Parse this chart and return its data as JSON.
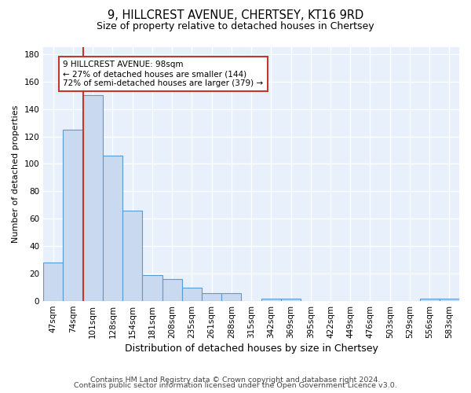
{
  "title1": "9, HILLCREST AVENUE, CHERTSEY, KT16 9RD",
  "title2": "Size of property relative to detached houses in Chertsey",
  "categories": [
    "47sqm",
    "74sqm",
    "101sqm",
    "128sqm",
    "154sqm",
    "181sqm",
    "208sqm",
    "235sqm",
    "261sqm",
    "288sqm",
    "315sqm",
    "342sqm",
    "369sqm",
    "395sqm",
    "422sqm",
    "449sqm",
    "476sqm",
    "503sqm",
    "529sqm",
    "556sqm",
    "583sqm"
  ],
  "values": [
    28,
    125,
    150,
    106,
    66,
    19,
    16,
    10,
    6,
    6,
    0,
    2,
    2,
    0,
    0,
    0,
    0,
    0,
    0,
    2,
    2
  ],
  "bar_color": "#c9d9f0",
  "bar_edge_color": "#5b9bd5",
  "bar_edge_width": 0.8,
  "vline_x_index": 2,
  "vline_color": "#c0392b",
  "annotation_line1": "9 HILLCREST AVENUE: 98sqm",
  "annotation_line2": "← 27% of detached houses are smaller (144)",
  "annotation_line3": "72% of semi-detached houses are larger (379) →",
  "annotation_box_color": "#ffffff",
  "annotation_box_edgecolor": "#c0392b",
  "xlabel": "Distribution of detached houses by size in Chertsey",
  "ylabel": "Number of detached properties",
  "ylim": [
    0,
    185
  ],
  "yticks": [
    0,
    20,
    40,
    60,
    80,
    100,
    120,
    140,
    160,
    180
  ],
  "bg_color": "#e8f0fb",
  "grid_color": "#ffffff",
  "footer1": "Contains HM Land Registry data © Crown copyright and database right 2024.",
  "footer2": "Contains public sector information licensed under the Open Government Licence v3.0.",
  "title1_fontsize": 10.5,
  "title2_fontsize": 9,
  "xlabel_fontsize": 9,
  "ylabel_fontsize": 8,
  "tick_fontsize": 7.5,
  "annotation_fontsize": 7.5,
  "footer_fontsize": 6.8
}
